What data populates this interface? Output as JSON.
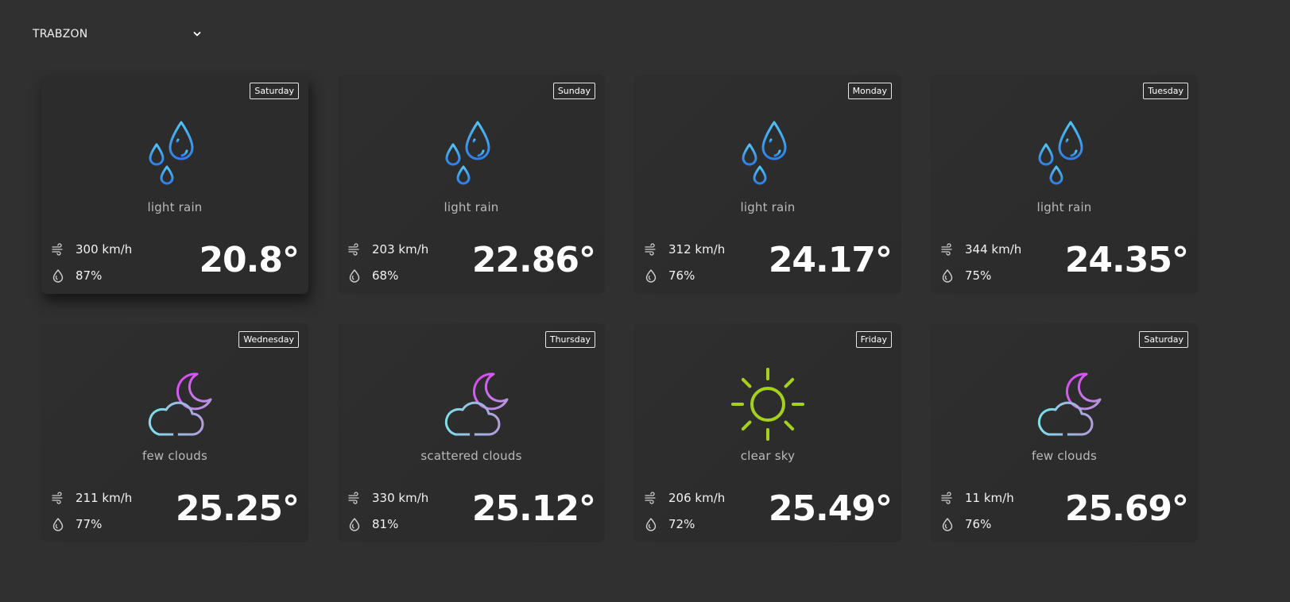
{
  "city_select": {
    "value": "TRABZON",
    "icon": "chevron-down-icon"
  },
  "forecast": [
    {
      "day": "Saturday",
      "icon": "rain-icon",
      "description": "light rain",
      "wind": "300 km/h",
      "humidity": "87%",
      "temp": "20.8°",
      "selected": true
    },
    {
      "day": "Sunday",
      "icon": "rain-icon",
      "description": "light rain",
      "wind": "203 km/h",
      "humidity": "68%",
      "temp": "22.86°"
    },
    {
      "day": "Monday",
      "icon": "rain-icon",
      "description": "light rain",
      "wind": "312 km/h",
      "humidity": "76%",
      "temp": "24.17°"
    },
    {
      "day": "Tuesday",
      "icon": "rain-icon",
      "description": "light rain",
      "wind": "344 km/h",
      "humidity": "75%",
      "temp": "24.35°"
    },
    {
      "day": "Wednesday",
      "icon": "cloud-moon-icon",
      "description": "few clouds",
      "wind": "211 km/h",
      "humidity": "77%",
      "temp": "25.25°"
    },
    {
      "day": "Thursday",
      "icon": "cloud-moon-icon",
      "description": "scattered clouds",
      "wind": "330 km/h",
      "humidity": "81%",
      "temp": "25.12°"
    },
    {
      "day": "Friday",
      "icon": "sun-icon",
      "description": "clear sky",
      "wind": "206 km/h",
      "humidity": "72%",
      "temp": "25.49°"
    },
    {
      "day": "Saturday",
      "icon": "cloud-moon-icon",
      "description": "few clouds",
      "wind": "11 km/h",
      "humidity": "76%",
      "temp": "25.69°"
    }
  ],
  "colors": {
    "background": "#303030",
    "rain_light": "#4fc3f7",
    "rain_dark": "#2f7fe6",
    "moon_pink": "#e040fb",
    "moon_lilac": "#b39ddb",
    "cloud_cyan": "#80deea",
    "sun_green": "#a5d11c"
  }
}
